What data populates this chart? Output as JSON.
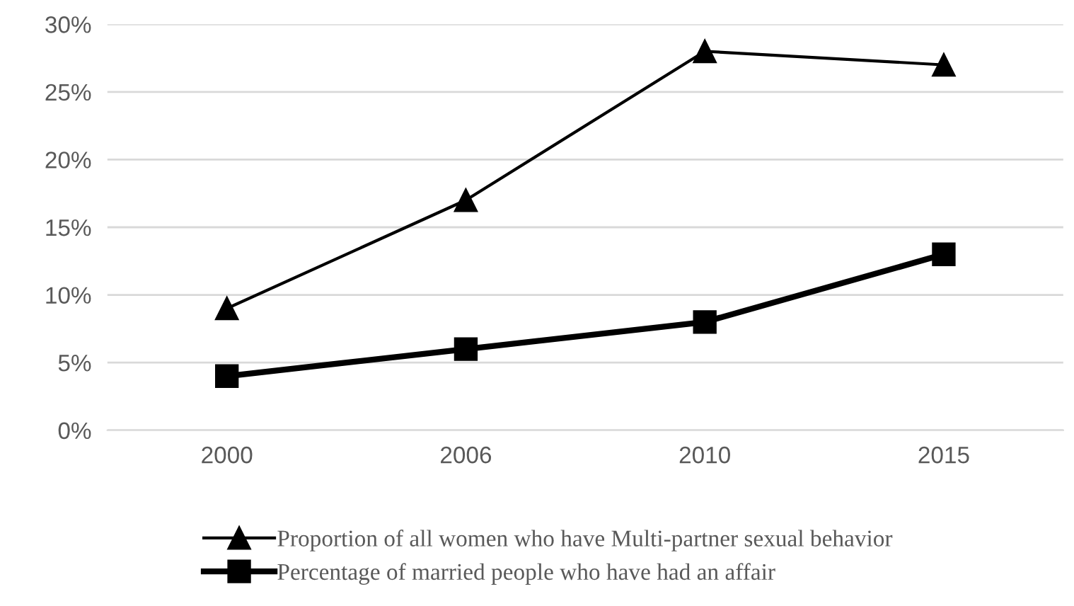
{
  "chart_data": {
    "type": "line",
    "categories": [
      "2000",
      "2006",
      "2010",
      "2015"
    ],
    "series": [
      {
        "name": "Proportion of all women who have Multi-partner sexual behavior",
        "color": "#000000",
        "marker": "triangle",
        "values": [
          9,
          17,
          28,
          27
        ]
      },
      {
        "name": "Percentage of married people who have had an affair",
        "color": "#000000",
        "marker": "square",
        "values": [
          4,
          6,
          8,
          13
        ]
      }
    ],
    "ylim": [
      0,
      30
    ],
    "yticks": [
      {
        "value": 0,
        "label": "0%"
      },
      {
        "value": 5,
        "label": "5%"
      },
      {
        "value": 10,
        "label": "10%"
      },
      {
        "value": 15,
        "label": "15%"
      },
      {
        "value": 20,
        "label": "20%"
      },
      {
        "value": 25,
        "label": "25%"
      },
      {
        "value": 30,
        "label": "30%"
      }
    ],
    "grid": "y",
    "legend": "bottom",
    "line_style": "solid"
  }
}
